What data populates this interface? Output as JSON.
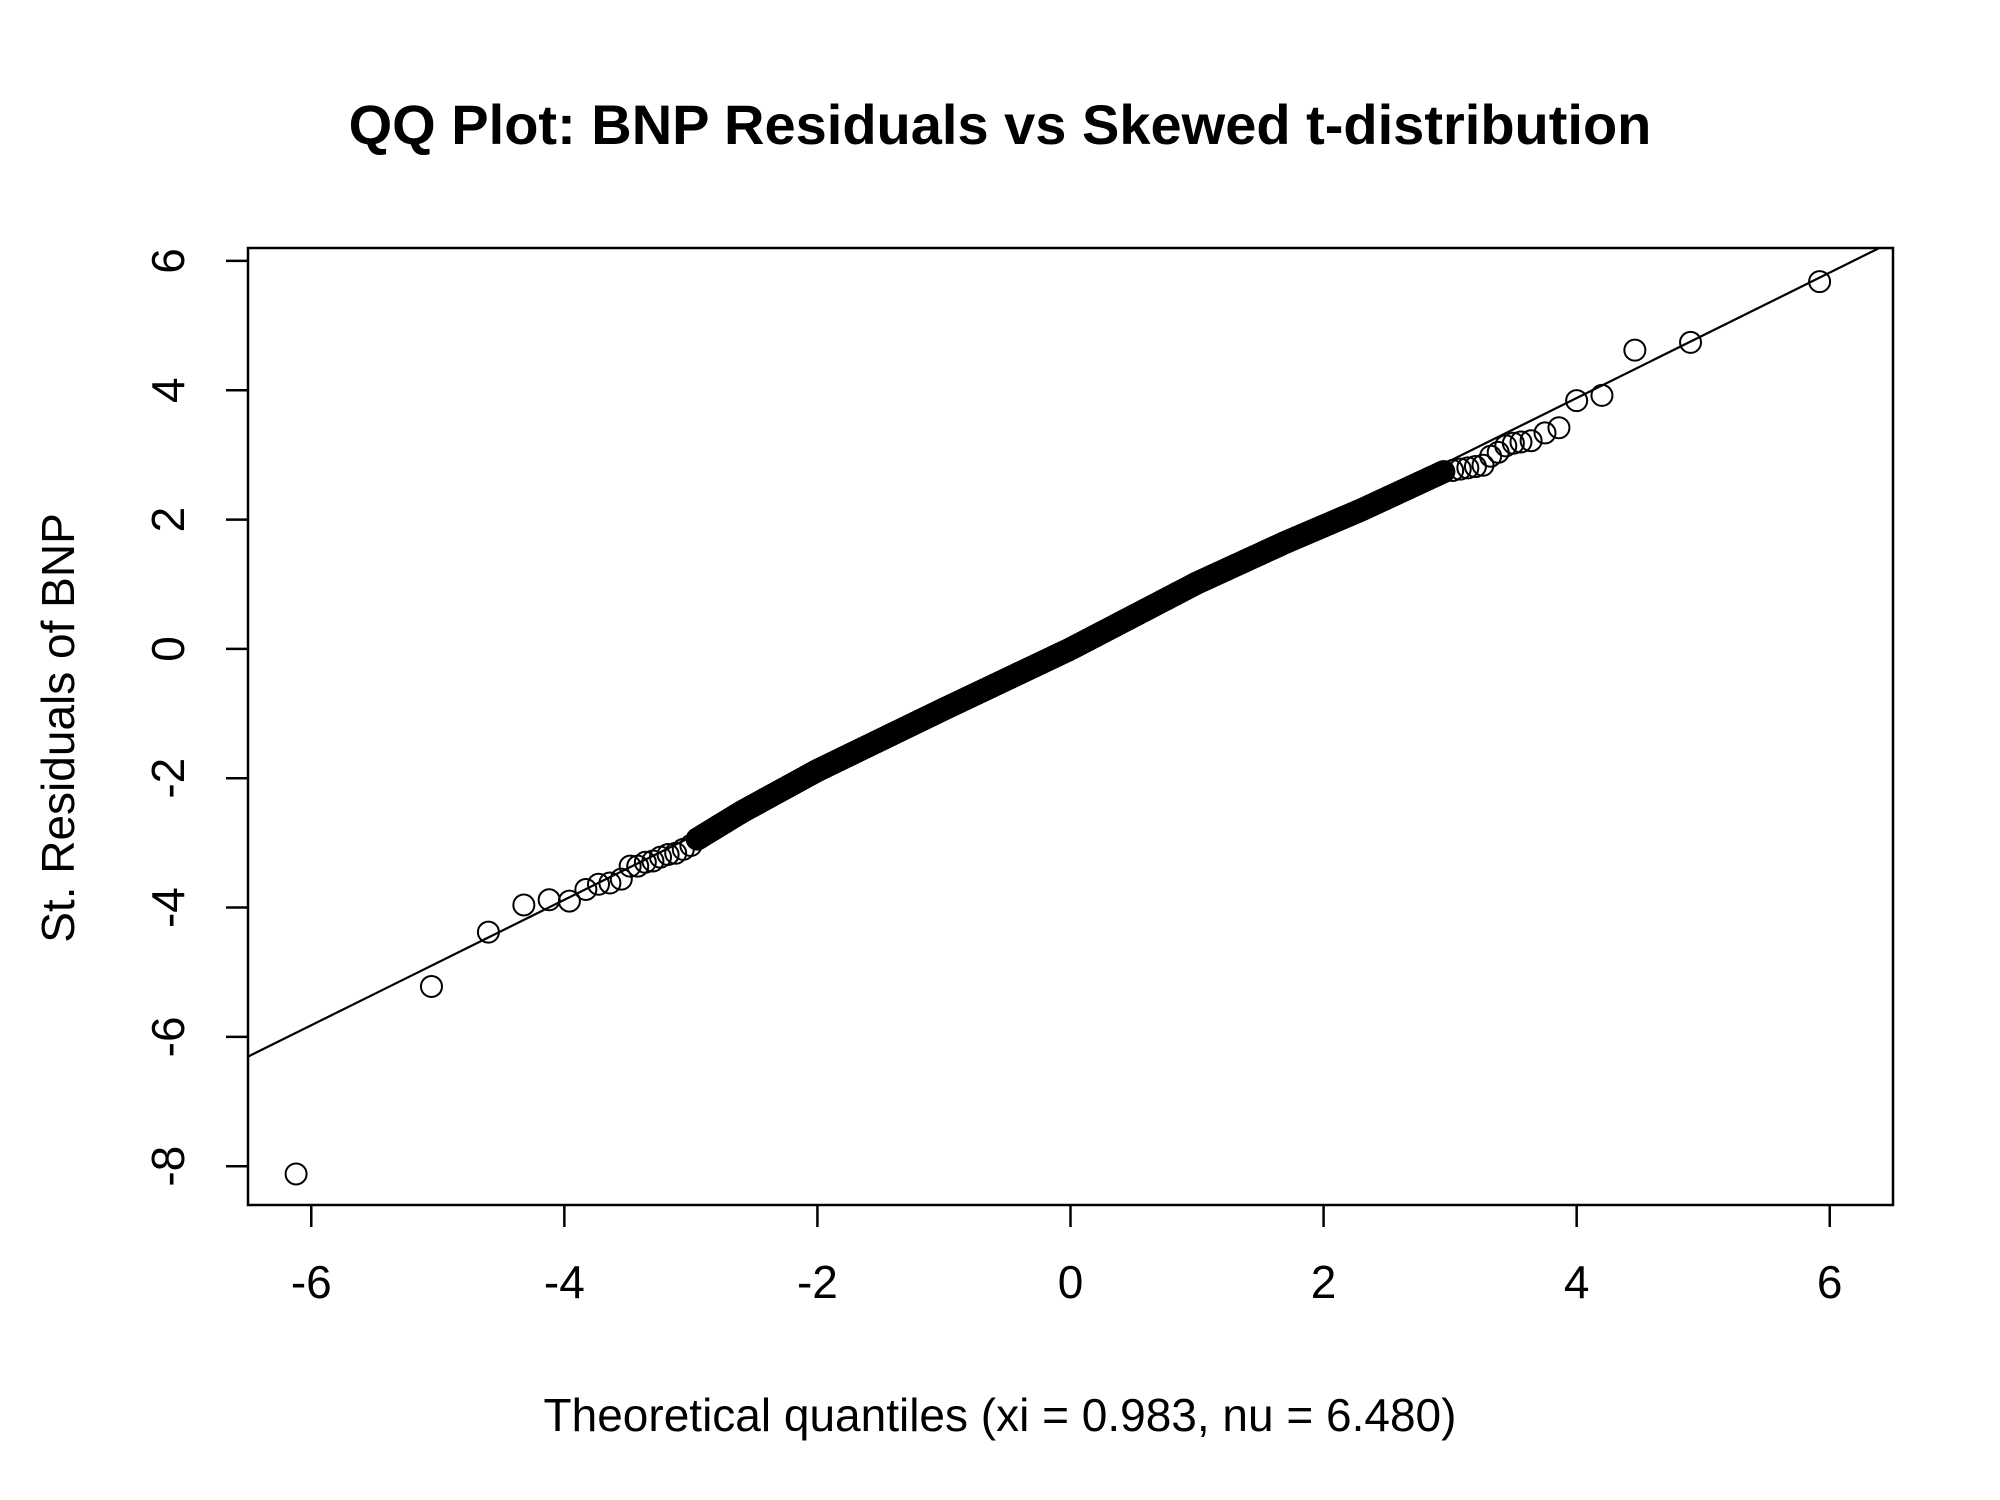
{
  "chart_data": {
    "type": "scatter",
    "title": "QQ Plot: BNP Residuals vs Skewed t-distribution",
    "xlabel": "Theoretical quantiles (xi = 0.983, nu = 6.480)",
    "ylabel": "St. Residuals of BNP",
    "xlim": [
      -6.5,
      6.5
    ],
    "ylim": [
      -8.6,
      6.2
    ],
    "x_ticks": [
      -6,
      -4,
      -2,
      0,
      2,
      4,
      6
    ],
    "x_tick_labels": [
      "-6",
      "-4",
      "-2",
      "0",
      "2",
      "4",
      "6"
    ],
    "y_ticks": [
      -8,
      -6,
      -4,
      -2,
      0,
      2,
      4,
      6
    ],
    "y_tick_labels": [
      "-8",
      "-6",
      "-4",
      "-2",
      "0",
      "2",
      "4",
      "6"
    ],
    "reference_line": {
      "slope": 0.97,
      "intercept": 0.0
    },
    "grid": false,
    "legend": "none",
    "marker": "open-circle",
    "colors": {
      "points": "#000000",
      "line": "#000000",
      "axes": "#000000"
    },
    "tail_points": [
      {
        "x": -6.12,
        "y": -8.12
      },
      {
        "x": -5.05,
        "y": -5.22
      },
      {
        "x": -4.6,
        "y": -4.38
      },
      {
        "x": -4.32,
        "y": -3.96
      },
      {
        "x": -4.12,
        "y": -3.88
      },
      {
        "x": -3.96,
        "y": -3.9
      },
      {
        "x": -3.83,
        "y": -3.72
      },
      {
        "x": -3.73,
        "y": -3.64
      },
      {
        "x": -3.64,
        "y": -3.62
      },
      {
        "x": -3.55,
        "y": -3.56
      },
      {
        "x": -3.48,
        "y": -3.36
      },
      {
        "x": -3.42,
        "y": -3.36
      },
      {
        "x": -3.36,
        "y": -3.3
      },
      {
        "x": -3.3,
        "y": -3.28
      },
      {
        "x": -3.24,
        "y": -3.22
      },
      {
        "x": -3.18,
        "y": -3.18
      },
      {
        "x": -3.12,
        "y": -3.16
      },
      {
        "x": -3.06,
        "y": -3.1
      },
      {
        "x": -3.0,
        "y": -3.04
      },
      {
        "x": -2.95,
        "y": -2.94
      },
      {
        "x": 2.95,
        "y": 2.74
      },
      {
        "x": 3.02,
        "y": 2.76
      },
      {
        "x": 3.08,
        "y": 2.78
      },
      {
        "x": 3.14,
        "y": 2.8
      },
      {
        "x": 3.2,
        "y": 2.82
      },
      {
        "x": 3.26,
        "y": 2.84
      },
      {
        "x": 3.32,
        "y": 2.98
      },
      {
        "x": 3.38,
        "y": 3.04
      },
      {
        "x": 3.44,
        "y": 3.14
      },
      {
        "x": 3.5,
        "y": 3.18
      },
      {
        "x": 3.56,
        "y": 3.2
      },
      {
        "x": 3.64,
        "y": 3.22
      },
      {
        "x": 3.75,
        "y": 3.34
      },
      {
        "x": 3.86,
        "y": 3.42
      },
      {
        "x": 4.0,
        "y": 3.84
      },
      {
        "x": 4.2,
        "y": 3.92
      },
      {
        "x": 4.46,
        "y": 4.62
      },
      {
        "x": 4.9,
        "y": 4.74
      },
      {
        "x": 5.92,
        "y": 5.68
      }
    ],
    "body_points": {
      "x_range": [
        -2.95,
        2.95
      ],
      "deviations": [
        {
          "x": -2.95,
          "dy": -0.08
        },
        {
          "x": -2.6,
          "dy": 0.0
        },
        {
          "x": -2.0,
          "dy": 0.06
        },
        {
          "x": -1.0,
          "dy": 0.04
        },
        {
          "x": 0.0,
          "dy": 0.0
        },
        {
          "x": 1.0,
          "dy": 0.05
        },
        {
          "x": 1.7,
          "dy": 0.0
        },
        {
          "x": 2.3,
          "dy": -0.08
        },
        {
          "x": 2.95,
          "dy": -0.12
        }
      ]
    }
  }
}
